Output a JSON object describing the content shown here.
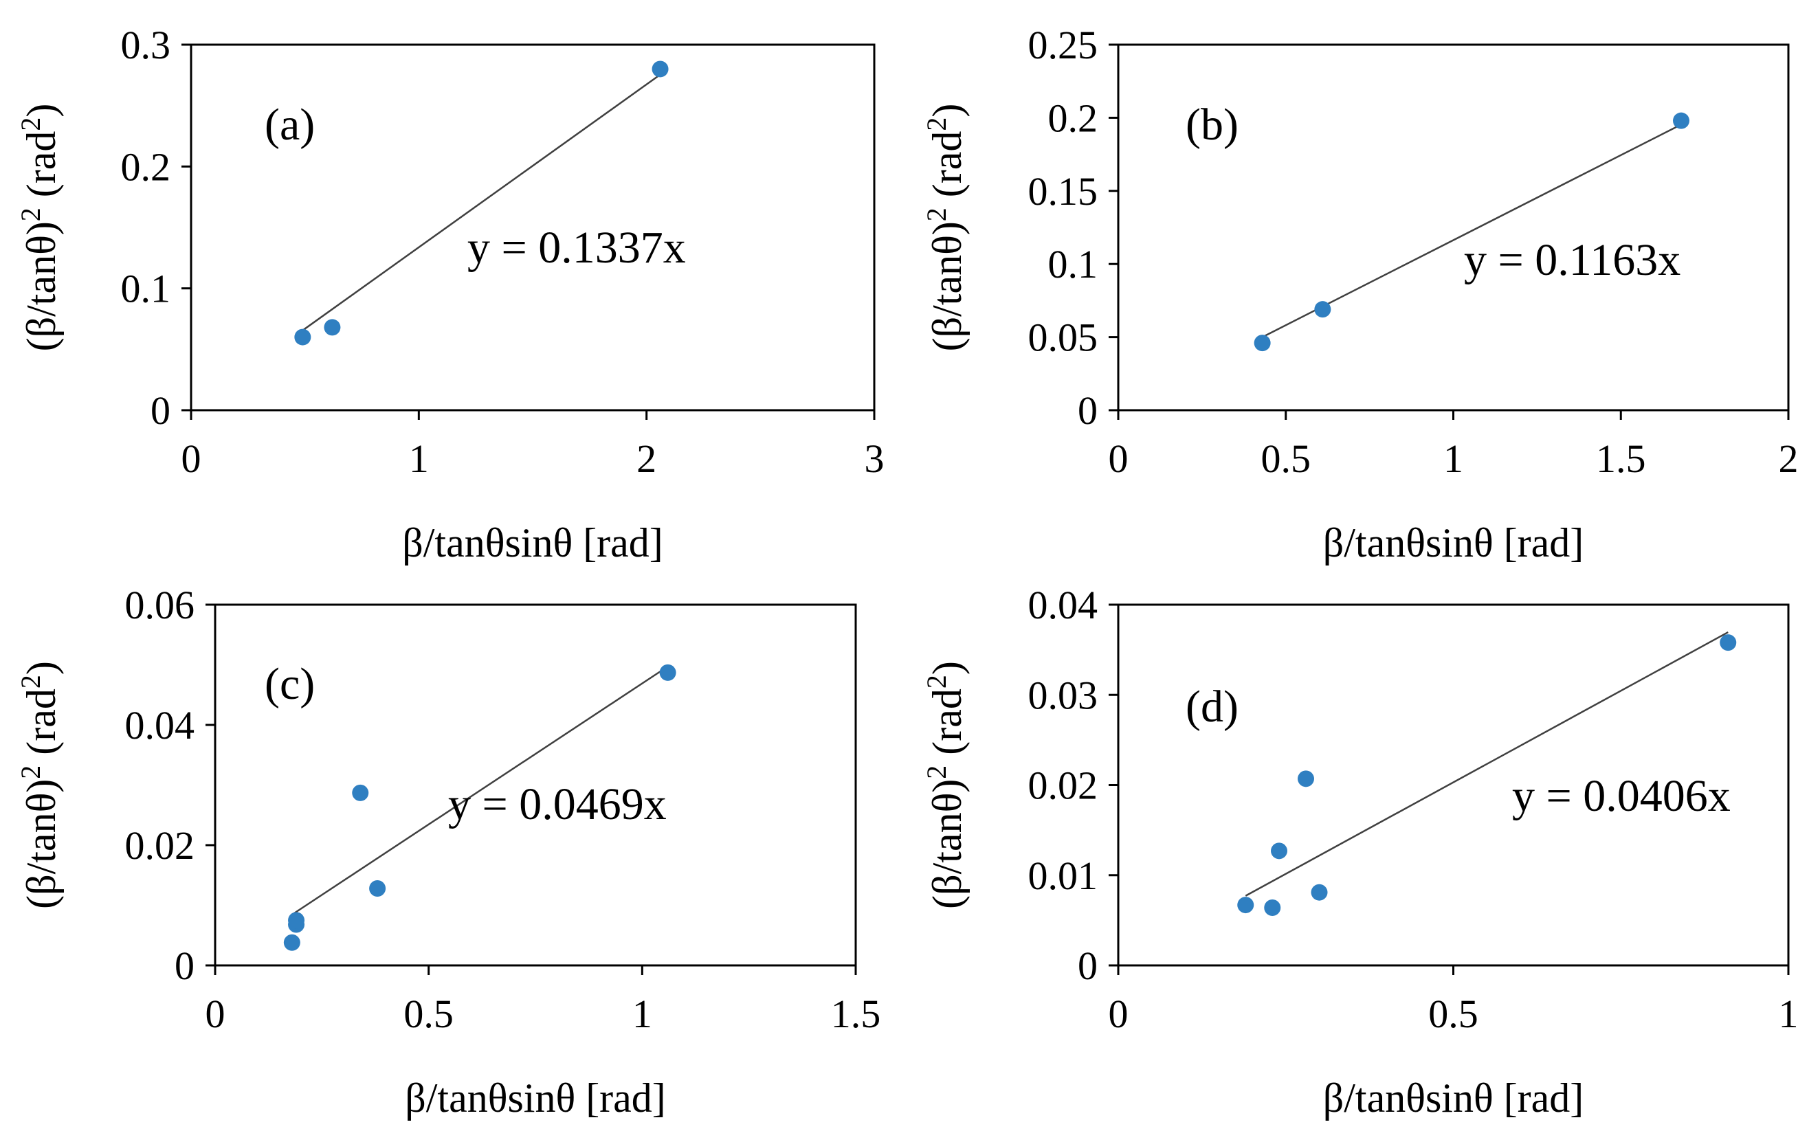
{
  "colors": {
    "marker": "#2f7fc1",
    "trendline": "#404040",
    "frame": "#000000"
  },
  "chart_data": [
    {
      "type": "scatter",
      "panel_label": "(a)",
      "xlabel": "β/tanθsinθ [rad]",
      "ylabel_main": "(β/tanθ)",
      "ylabel_sup": "2",
      "ylabel_unit": " (rad",
      "ylabel_unit_sup": "2",
      "ylabel_close": ")",
      "xlim": [
        0,
        3
      ],
      "ylim": [
        0,
        0.3
      ],
      "xticks": [
        0,
        1,
        2,
        3
      ],
      "xtick_labels": [
        "0",
        "1",
        "2",
        "3"
      ],
      "yticks": [
        0,
        0.1,
        0.2,
        0.3
      ],
      "ytick_labels": [
        "0",
        "0.1",
        "0.2",
        "0.3"
      ],
      "points": [
        {
          "x": 0.49,
          "y": 0.06
        },
        {
          "x": 0.62,
          "y": 0.068
        },
        {
          "x": 2.06,
          "y": 0.28
        }
      ],
      "trendline": {
        "slope": 0.1337,
        "x_from": 0.49,
        "x_to": 2.06
      },
      "equation": "y = 0.1337x"
    },
    {
      "type": "scatter",
      "panel_label": "(b)",
      "xlabel": "β/tanθsinθ [rad]",
      "ylabel_main": "(β/tanθ)",
      "ylabel_sup": "2",
      "ylabel_unit": " (rad",
      "ylabel_unit_sup": "2",
      "ylabel_close": ")",
      "xlim": [
        0,
        2
      ],
      "ylim": [
        0,
        0.25
      ],
      "xticks": [
        0,
        0.5,
        1,
        1.5,
        2
      ],
      "xtick_labels": [
        "0",
        "0.5",
        "1",
        "1.5",
        "2"
      ],
      "yticks": [
        0,
        0.05,
        0.1,
        0.15,
        0.2,
        0.25
      ],
      "ytick_labels": [
        "0",
        "0.05",
        "0.1",
        "0.15",
        "0.2",
        "0.25"
      ],
      "points": [
        {
          "x": 0.43,
          "y": 0.046
        },
        {
          "x": 0.61,
          "y": 0.069
        },
        {
          "x": 1.68,
          "y": 0.198
        }
      ],
      "trendline": {
        "slope": 0.1163,
        "x_from": 0.43,
        "x_to": 1.68
      },
      "equation": "y = 0.1163x"
    },
    {
      "type": "scatter",
      "panel_label": "(c)",
      "xlabel": "β/tanθsinθ [rad]",
      "ylabel_main": "(β/tanθ)",
      "ylabel_sup": "2",
      "ylabel_unit": " (rad",
      "ylabel_unit_sup": "2",
      "ylabel_close": ")",
      "xlim": [
        0,
        1.5
      ],
      "ylim": [
        0,
        0.06
      ],
      "xticks": [
        0,
        0.5,
        1,
        1.5
      ],
      "xtick_labels": [
        "0",
        "0.5",
        "1",
        "1.5"
      ],
      "yticks": [
        0,
        0.02,
        0.04,
        0.06
      ],
      "ytick_labels": [
        "0",
        "0.02",
        "0.04",
        "0.06"
      ],
      "points": [
        {
          "x": 0.18,
          "y": 0.0038
        },
        {
          "x": 0.19,
          "y": 0.0068
        },
        {
          "x": 0.19,
          "y": 0.0075
        },
        {
          "x": 0.34,
          "y": 0.0287
        },
        {
          "x": 0.38,
          "y": 0.0128
        },
        {
          "x": 1.06,
          "y": 0.0487
        }
      ],
      "trendline": {
        "slope": 0.0469,
        "x_from": 0.18,
        "x_to": 1.06
      },
      "equation": "y = 0.0469x"
    },
    {
      "type": "scatter",
      "panel_label": "(d)",
      "xlabel": "β/tanθsinθ [rad]",
      "ylabel_main": "(β/tanθ)",
      "ylabel_sup": "2",
      "ylabel_unit": " (rad",
      "ylabel_unit_sup": "2",
      "ylabel_close": ")",
      "xlim": [
        0,
        1
      ],
      "ylim": [
        0,
        0.04
      ],
      "xticks": [
        0,
        0.5,
        1
      ],
      "xtick_labels": [
        "0",
        "0.5",
        "1"
      ],
      "yticks": [
        0,
        0.01,
        0.02,
        0.03,
        0.04
      ],
      "ytick_labels": [
        "0",
        "0.01",
        "0.02",
        "0.03",
        "0.04"
      ],
      "points": [
        {
          "x": 0.19,
          "y": 0.0067
        },
        {
          "x": 0.23,
          "y": 0.0064
        },
        {
          "x": 0.24,
          "y": 0.0127
        },
        {
          "x": 0.28,
          "y": 0.0207
        },
        {
          "x": 0.3,
          "y": 0.0081
        },
        {
          "x": 0.91,
          "y": 0.0358
        }
      ],
      "trendline": {
        "slope": 0.0406,
        "x_from": 0.19,
        "x_to": 0.91
      },
      "equation": "y = 0.0406x"
    }
  ]
}
